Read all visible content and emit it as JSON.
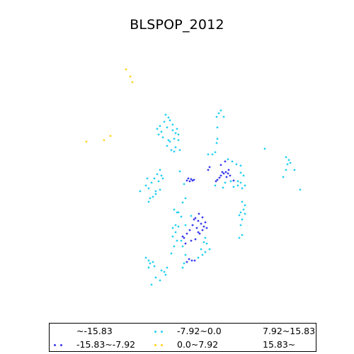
{
  "title": "BLSPOP_2012",
  "chart_data": {
    "type": "scatter",
    "title": "BLSPOP_2012",
    "legend_placement": "bottom",
    "series": [
      {
        "name": "~-15.83",
        "color": "#2b2bd6",
        "count": 0,
        "points": []
      },
      {
        "name": "-15.83~-7.92",
        "color": "#3a3af0",
        "points": [
          [
            264,
            255
          ],
          [
            268,
            256
          ],
          [
            270,
            253
          ],
          [
            272,
            255
          ],
          [
            266,
            252
          ],
          [
            274,
            254
          ],
          [
            305,
            256
          ],
          [
            307,
            254
          ],
          [
            310,
            251
          ],
          [
            312,
            248
          ],
          [
            316,
            245
          ],
          [
            319,
            243
          ],
          [
            323,
            240
          ],
          [
            325,
            248
          ],
          [
            320,
            250
          ],
          [
            314,
            243
          ],
          [
            312,
            233
          ],
          [
            318,
            228
          ],
          [
            296,
            236
          ],
          [
            294,
            240
          ],
          [
            330,
            255
          ],
          [
            322,
            245
          ],
          [
            276,
            308
          ],
          [
            280,
            312
          ],
          [
            284,
            316
          ],
          [
            288,
            320
          ],
          [
            290,
            314
          ],
          [
            286,
            325
          ],
          [
            282,
            330
          ],
          [
            278,
            322
          ],
          [
            272,
            318
          ],
          [
            268,
            325
          ],
          [
            264,
            330
          ],
          [
            260,
            336
          ],
          [
            270,
            340
          ],
          [
            276,
            338
          ],
          [
            280,
            328
          ],
          [
            274,
            310
          ],
          [
            286,
            307
          ],
          [
            281,
            302
          ],
          [
            292,
            322
          ],
          [
            262,
            344
          ],
          [
            258,
            334
          ],
          [
            267,
            366
          ],
          [
            271,
            368
          ],
          [
            275,
            368
          ],
          [
            264,
            370
          ]
        ]
      },
      {
        "name": "-7.92~0.0",
        "color": "#25d0f2",
        "points": [
          [
            226,
            178
          ],
          [
            228,
            186
          ],
          [
            232,
            172
          ],
          [
            236,
            180
          ],
          [
            240,
            170
          ],
          [
            244,
            176
          ],
          [
            250,
            182
          ],
          [
            252,
            190
          ],
          [
            246,
            196
          ],
          [
            240,
            200
          ],
          [
            236,
            206
          ],
          [
            242,
            212
          ],
          [
            248,
            208
          ],
          [
            252,
            198
          ],
          [
            224,
            190
          ],
          [
            230,
            194
          ],
          [
            234,
            162
          ],
          [
            238,
            166
          ],
          [
            244,
            184
          ],
          [
            248,
            188
          ],
          [
            222,
            182
          ],
          [
            238,
            198
          ],
          [
            246,
            214
          ],
          [
            254,
            212
          ],
          [
            304,
            215
          ],
          [
            309,
            160
          ],
          [
            312,
            156
          ],
          [
            316,
            165
          ],
          [
            306,
            165
          ],
          [
            307,
            180
          ],
          [
            307,
            196
          ],
          [
            306,
            202
          ],
          [
            300,
            218
          ],
          [
            322,
            225
          ],
          [
            328,
            228
          ],
          [
            334,
            232
          ],
          [
            340,
            234
          ],
          [
            344,
            248
          ],
          [
            340,
            258
          ],
          [
            336,
            262
          ],
          [
            330,
            264
          ],
          [
            315,
            265
          ],
          [
            304,
            262
          ],
          [
            342,
            266
          ],
          [
            346,
            262
          ],
          [
            336,
            256
          ],
          [
            340,
            244
          ],
          [
            326,
            256
          ],
          [
            318,
            258
          ],
          [
            294,
            218
          ],
          [
            342,
            285
          ],
          [
            346,
            290
          ],
          [
            344,
            296
          ],
          [
            340,
            300
          ],
          [
            338,
            304
          ],
          [
            342,
            310
          ],
          [
            340,
            318
          ],
          [
            342,
            332
          ],
          [
            338,
            336
          ],
          [
            346,
            302
          ],
          [
            206,
            262
          ],
          [
            210,
            266
          ],
          [
            214,
            258
          ],
          [
            218,
            252
          ],
          [
            222,
            246
          ],
          [
            226,
            240
          ],
          [
            228,
            248
          ],
          [
            224,
            256
          ],
          [
            230,
            252
          ],
          [
            220,
            270
          ],
          [
            216,
            278
          ],
          [
            210,
            285
          ],
          [
            212,
            280
          ],
          [
            220,
            274
          ],
          [
            198,
            270
          ],
          [
            208,
            252
          ],
          [
            226,
            268
          ],
          [
            246,
            296
          ],
          [
            250,
            300
          ],
          [
            248,
            318
          ],
          [
            244,
            322
          ],
          [
            252,
            320
          ],
          [
            248,
            328
          ],
          [
            244,
            334
          ],
          [
            250,
            340
          ],
          [
            246,
            348
          ],
          [
            242,
            358
          ],
          [
            258,
            286
          ],
          [
            262,
            280
          ],
          [
            260,
            260
          ],
          [
            254,
            242
          ],
          [
            252,
            300
          ],
          [
            256,
            306
          ],
          [
            262,
            318
          ],
          [
            270,
            305
          ],
          [
            256,
            340
          ],
          [
            258,
            348
          ],
          [
            290,
            336
          ],
          [
            292,
            344
          ],
          [
            296,
            352
          ],
          [
            290,
            356
          ],
          [
            286,
            360
          ],
          [
            280,
            364
          ],
          [
            284,
            352
          ],
          [
            288,
            342
          ],
          [
            258,
            378
          ],
          [
            260,
            372
          ],
          [
            262,
            360
          ],
          [
            206,
            364
          ],
          [
            210,
            368
          ],
          [
            212,
            372
          ],
          [
            216,
            370
          ],
          [
            218,
            376
          ],
          [
            210,
            378
          ],
          [
            236,
            378
          ],
          [
            232,
            384
          ],
          [
            228,
            382
          ],
          [
            234,
            388
          ],
          [
            226,
            396
          ],
          [
            220,
            392
          ],
          [
            214,
            402
          ],
          [
            374,
            210
          ],
          [
            404,
            222
          ],
          [
            408,
            226
          ],
          [
            406,
            232
          ],
          [
            410,
            230
          ],
          [
            404,
            240
          ],
          [
            400,
            250
          ],
          [
            416,
            240
          ],
          [
            424,
            268
          ]
        ]
      },
      {
        "name": "0.0~7.92",
        "color": "#ffd21a",
        "points": [
          [
            178,
            98
          ],
          [
            184,
            108
          ],
          [
            187,
            116
          ],
          [
            122,
            200
          ],
          [
            147,
            198
          ],
          [
            156,
            192
          ]
        ]
      },
      {
        "name": "7.92~15.83",
        "color": "#ff9900",
        "count": 0,
        "points": []
      },
      {
        "name": "15.83~",
        "color": "#ff3300",
        "count": 0,
        "points": []
      }
    ]
  },
  "legend": {
    "items": [
      {
        "label": "~-15.83"
      },
      {
        "label": "-7.92~0.0"
      },
      {
        "label": "7.92~15.83"
      },
      {
        "label": "-15.83~-7.92"
      },
      {
        "label": "0.0~7.92"
      },
      {
        "label": "15.83~"
      }
    ]
  }
}
